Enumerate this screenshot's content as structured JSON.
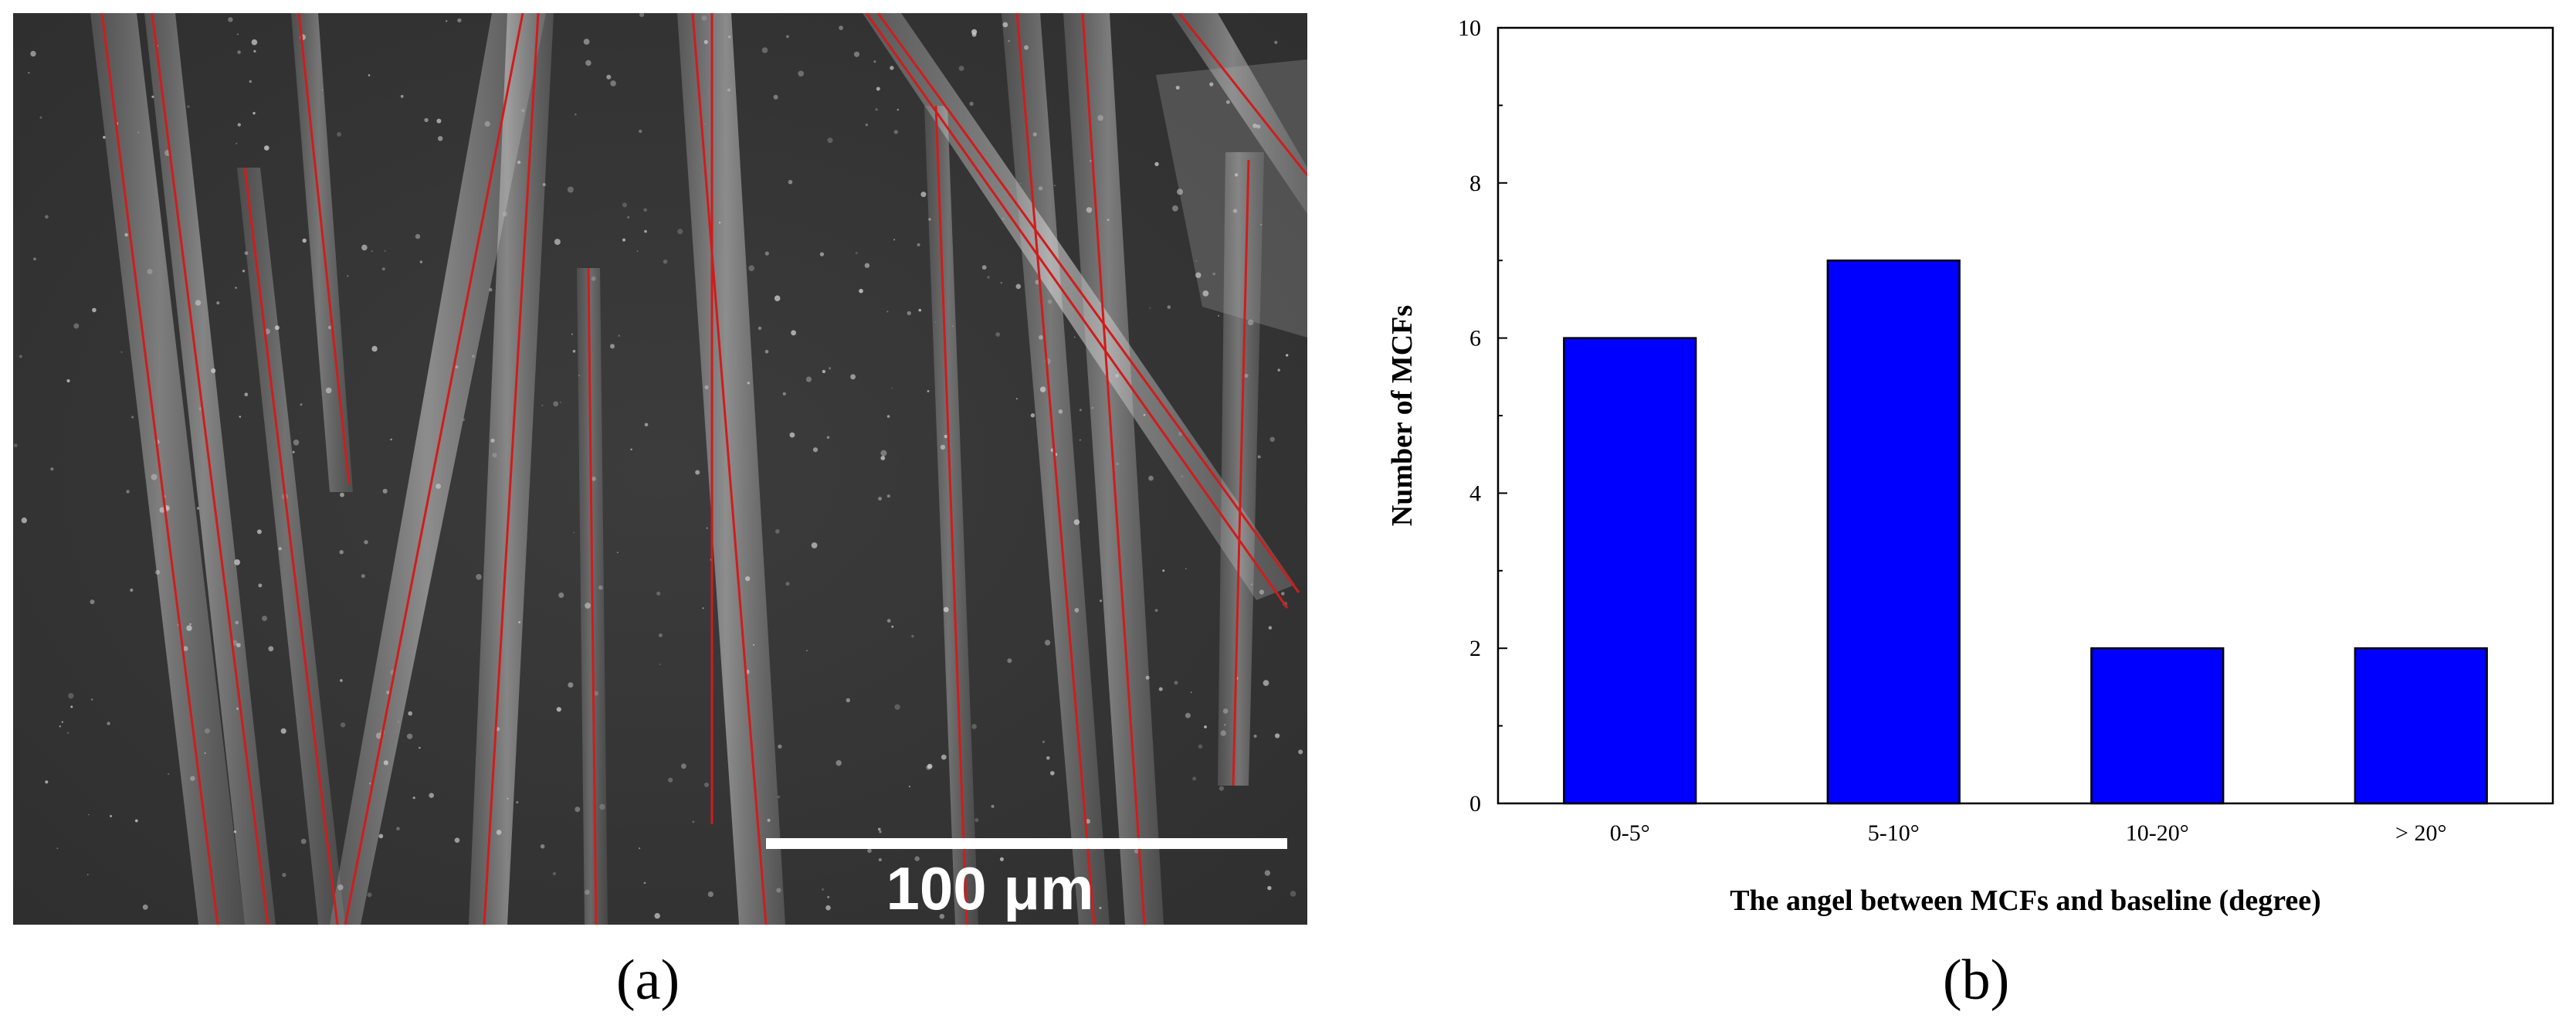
{
  "figure": {
    "panel_a_caption": "(a)",
    "panel_b_caption": "(b)"
  },
  "micrograph": {
    "scale_bar_label": "100 μm",
    "background_color": "#3a3a3a",
    "fiber_color": "#d8d8d8",
    "trace_line_color": "#d01c1c"
  },
  "chart_data": {
    "type": "bar",
    "categories": [
      "0-5°",
      "5-10°",
      "10-20°",
      "> 20°"
    ],
    "values": [
      6,
      7,
      2,
      2
    ],
    "title": "",
    "xlabel": "The angel between MCFs and baseline (degree)",
    "ylabel": "Number of MCFs",
    "ylim": [
      0,
      10
    ],
    "yticks": [
      0,
      2,
      4,
      6,
      8,
      10
    ],
    "grid": false,
    "legend": "none",
    "bar_color": "#0000ff",
    "bar_edge_color": "#000000"
  }
}
